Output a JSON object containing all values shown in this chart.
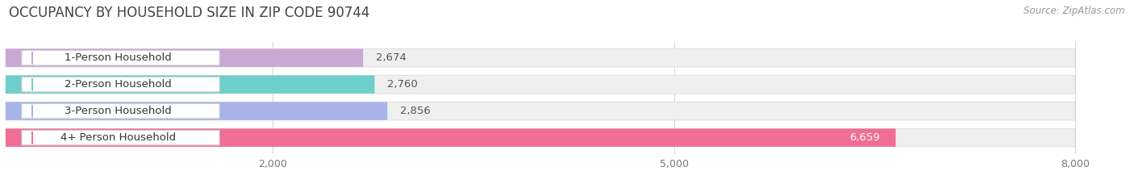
{
  "title": "OCCUPANCY BY HOUSEHOLD SIZE IN ZIP CODE 90744",
  "source": "Source: ZipAtlas.com",
  "categories": [
    "1-Person Household",
    "2-Person Household",
    "3-Person Household",
    "4+ Person Household"
  ],
  "values": [
    2674,
    2760,
    2856,
    6659
  ],
  "bar_colors": [
    "#c9a8d4",
    "#6ecfca",
    "#a8b4e8",
    "#f06e96"
  ],
  "label_colors": [
    "#555555",
    "#555555",
    "#555555",
    "#ffffff"
  ],
  "background_color": "#ffffff",
  "bar_bg_color": "#efefef",
  "bar_bg_border": "#e0e0e0",
  "xlim_max": 8400,
  "data_max": 8000,
  "xticks": [
    2000,
    5000,
    8000
  ],
  "title_fontsize": 12,
  "source_fontsize": 8.5,
  "label_fontsize": 9.5,
  "value_fontsize": 9.5
}
